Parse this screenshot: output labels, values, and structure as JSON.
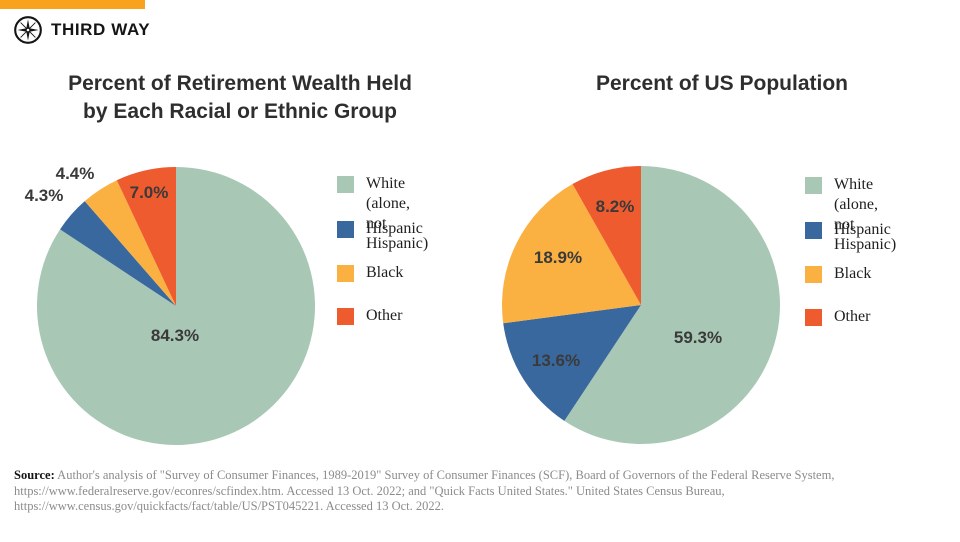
{
  "brand": {
    "logo_text": "THIRD WAY",
    "bar_color": "#F9A21D"
  },
  "headers": {
    "left_title_line1": "Percent of Retirement Wealth Held",
    "left_title_line2": "by Each Racial or Ethnic Group",
    "right_title": "Percent of US Population"
  },
  "chart_data": [
    {
      "type": "pie",
      "title": "Percent of Retirement Wealth Held by Each Racial or Ethnic Group",
      "categories": [
        "White (alone, not Hispanic)",
        "Hispanic",
        "Black",
        "Other"
      ],
      "values": [
        84.3,
        4.3,
        4.4,
        7.0
      ],
      "labels": [
        "84.3%",
        "4.3%",
        "4.4%",
        "7.0%"
      ],
      "colors": [
        "#A8C8B5",
        "#39689E",
        "#FBB042",
        "#EE5B2E"
      ],
      "legend_labels": [
        "White (alone,\nnot Hispanic)",
        "Hispanic",
        "Black",
        "Other"
      ],
      "start_angle_deg_clockwise_from_top": 0,
      "direction": "clockwise",
      "legend_position": "right"
    },
    {
      "type": "pie",
      "title": "Percent of US Population",
      "categories": [
        "White (alone, not Hispanic)",
        "Hispanic",
        "Black",
        "Other"
      ],
      "values": [
        59.3,
        13.6,
        18.9,
        8.2
      ],
      "labels": [
        "59.3%",
        "13.6%",
        "18.9%",
        "8.2%"
      ],
      "colors": [
        "#A8C8B5",
        "#39689E",
        "#FBB042",
        "#EE5B2E"
      ],
      "legend_labels": [
        "White (alone,\nnot Hispanic)",
        "Hispanic",
        "Black",
        "Other"
      ],
      "start_angle_deg_clockwise_from_top": 0,
      "direction": "clockwise",
      "legend_position": "right"
    }
  ],
  "source": {
    "prefix": "Source:",
    "line1": " Author's analysis of \"Survey of Consumer Finances, 1989-2019\" Survey of Consumer Finances (SCF), Board of Governors of the Federal Reserve System,",
    "line2": "https://www.federalreserve.gov/econres/scfindex.htm. Accessed 13 Oct. 2022; and \"Quick Facts United States.\" United States Census Bureau,",
    "line3": "https://www.census.gov/quickfacts/fact/table/US/PST045221.  Accessed 13 Oct. 2022."
  }
}
